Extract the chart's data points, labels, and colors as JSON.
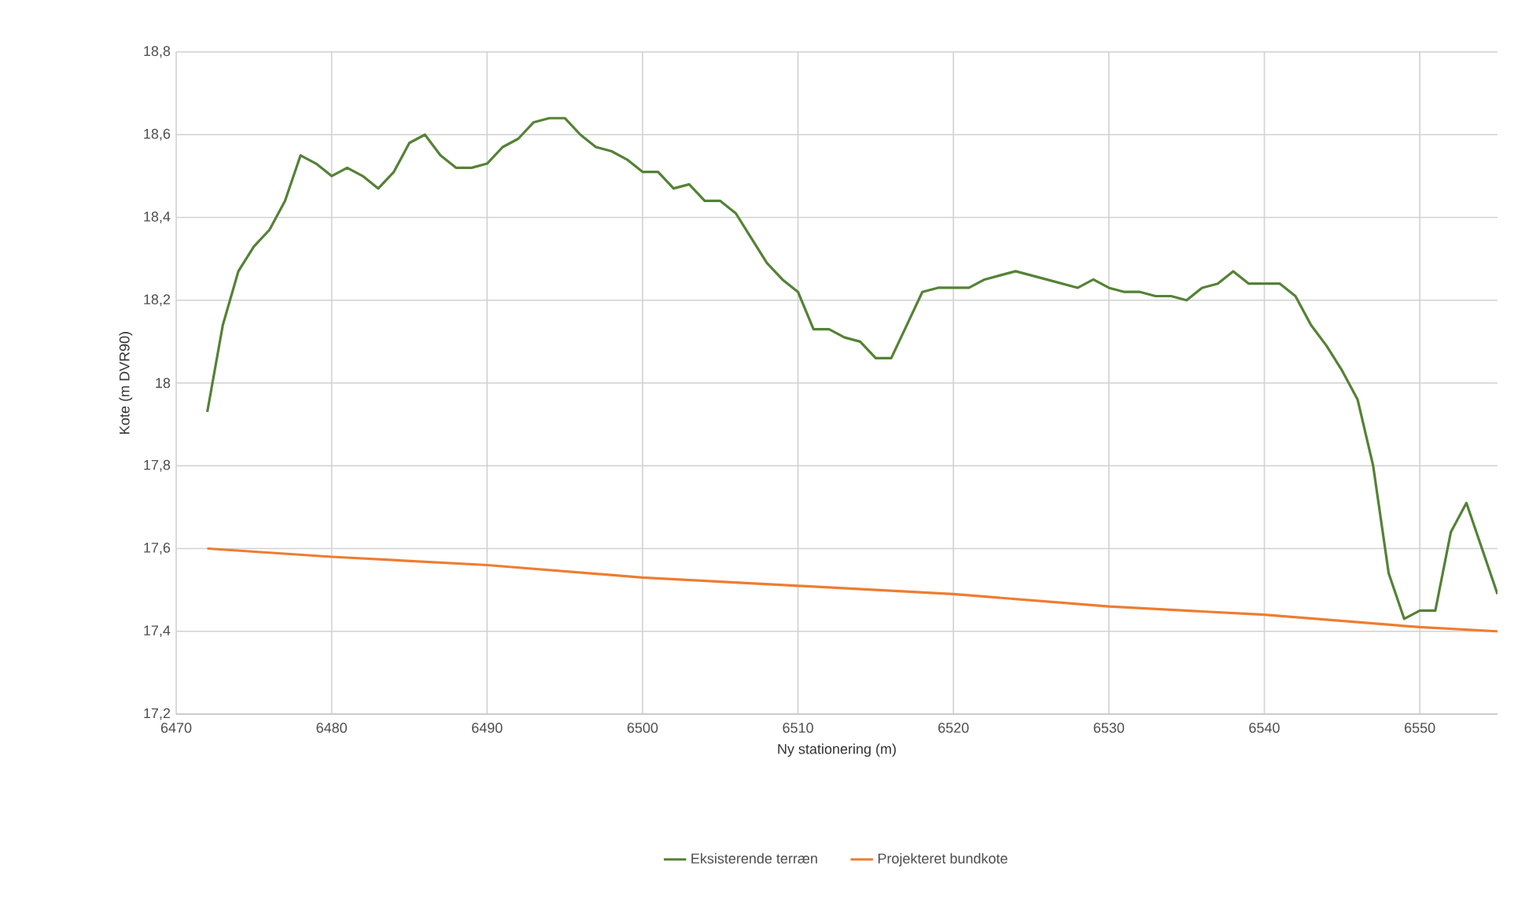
{
  "chart_data": {
    "type": "line",
    "xlabel": "Ny stationering (m)",
    "ylabel": "Kote (m DVR90)",
    "xlim": [
      6470,
      6555
    ],
    "xticks": [
      6470,
      6480,
      6490,
      6500,
      6510,
      6520,
      6530,
      6540,
      6550
    ],
    "ylim": [
      17.2,
      18.8
    ],
    "yticks": [
      {
        "value": 17.2,
        "label": "17,2"
      },
      {
        "value": 17.4,
        "label": "17,4"
      },
      {
        "value": 17.6,
        "label": "17,6"
      },
      {
        "value": 17.8,
        "label": "17,8"
      },
      {
        "value": 18,
        "label": "18"
      },
      {
        "value": 18.2,
        "label": "18,2"
      },
      {
        "value": 18.4,
        "label": "18,4"
      },
      {
        "value": 18.6,
        "label": "18,6"
      },
      {
        "value": 18.8,
        "label": "18,8"
      }
    ],
    "grid": true,
    "legend": "bottom",
    "marker": "none",
    "line_style": "solid",
    "series": [
      {
        "name": "Eksisterende terræn",
        "color": "#548235",
        "x": [
          6472,
          6473,
          6474,
          6475,
          6476,
          6477,
          6478,
          6479,
          6480,
          6481,
          6482,
          6483,
          6484,
          6485,
          6486,
          6487,
          6488,
          6489,
          6490,
          6491,
          6492,
          6493,
          6494,
          6495,
          6496,
          6497,
          6498,
          6499,
          6500,
          6501,
          6502,
          6503,
          6504,
          6505,
          6506,
          6507,
          6508,
          6509,
          6510,
          6511,
          6512,
          6513,
          6514,
          6515,
          6516,
          6517,
          6518,
          6519,
          6520,
          6521,
          6522,
          6523,
          6524,
          6525,
          6526,
          6527,
          6528,
          6529,
          6530,
          6531,
          6532,
          6533,
          6534,
          6535,
          6536,
          6537,
          6538,
          6539,
          6540,
          6541,
          6542,
          6543,
          6544,
          6545,
          6546,
          6547,
          6548,
          6549,
          6550,
          6551,
          6552,
          6553,
          6555
        ],
        "values": [
          17.93,
          18.14,
          18.27,
          18.33,
          18.37,
          18.44,
          18.55,
          18.53,
          18.5,
          18.52,
          18.5,
          18.47,
          18.51,
          18.58,
          18.6,
          18.55,
          18.52,
          18.52,
          18.53,
          18.57,
          18.59,
          18.63,
          18.64,
          18.64,
          18.6,
          18.57,
          18.56,
          18.54,
          18.51,
          18.51,
          18.47,
          18.48,
          18.44,
          18.44,
          18.41,
          18.35,
          18.29,
          18.25,
          18.22,
          18.13,
          18.13,
          18.11,
          18.1,
          18.06,
          18.06,
          18.14,
          18.22,
          18.23,
          18.23,
          18.23,
          18.25,
          18.26,
          18.27,
          18.26,
          18.25,
          18.24,
          18.23,
          18.25,
          18.23,
          18.22,
          18.22,
          18.21,
          18.21,
          18.2,
          18.23,
          18.24,
          18.27,
          18.24,
          18.24,
          18.24,
          18.21,
          18.14,
          18.09,
          18.03,
          17.96,
          17.8,
          17.54,
          17.43,
          17.45,
          17.45,
          17.64,
          17.71,
          17.49
        ]
      },
      {
        "name": "Projekteret bundkote",
        "color": "#ed7d31",
        "x": [
          6472,
          6480,
          6490,
          6500,
          6510,
          6520,
          6530,
          6540,
          6550,
          6555
        ],
        "values": [
          17.6,
          17.58,
          17.56,
          17.53,
          17.51,
          17.49,
          17.46,
          17.44,
          17.41,
          17.4
        ]
      }
    ]
  }
}
